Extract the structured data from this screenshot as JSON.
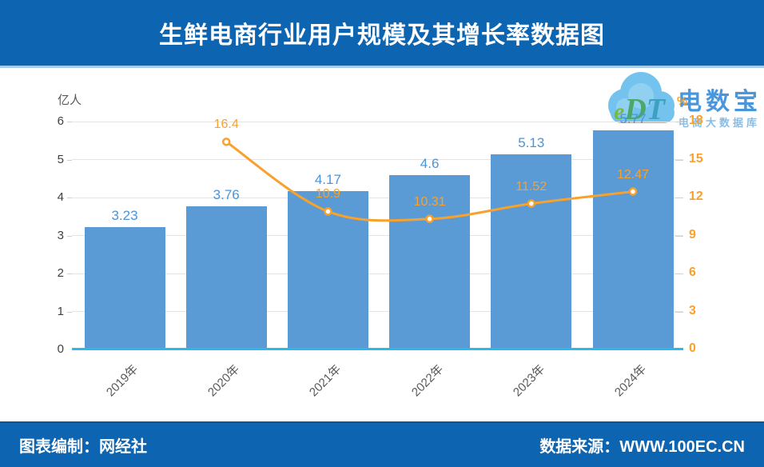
{
  "header": {
    "title": "生鲜电商行业用户规模及其增长率数据图"
  },
  "footer": {
    "left": "图表编制：网经社",
    "right": "数据来源：WWW.100EC.CN"
  },
  "logo": {
    "mark_e": "e",
    "mark_d": "D",
    "mark_t": "T",
    "name": "电数宝",
    "subtitle": "电商大数据库",
    "cloud_icon": "cloud-icon"
  },
  "chart_data": {
    "type": "bar",
    "title": "生鲜电商行业用户规模及其增长率数据图",
    "categories": [
      "2019年",
      "2020年",
      "2021年",
      "2022年",
      "2023年",
      "2024年"
    ],
    "series": [
      {
        "name": "用户规模",
        "type": "bar",
        "axis": "left",
        "values": [
          3.23,
          3.76,
          4.17,
          4.6,
          5.13,
          5.77
        ]
      },
      {
        "name": "增长率",
        "type": "line",
        "axis": "right",
        "values": [
          null,
          16.4,
          10.9,
          10.31,
          11.52,
          12.47
        ]
      }
    ],
    "left_axis": {
      "title": "亿人",
      "min": 0,
      "max": 6,
      "ticks": [
        0,
        1,
        2,
        3,
        4,
        5,
        6
      ]
    },
    "right_axis": {
      "title": "%",
      "min": 0,
      "max": 18,
      "ticks": [
        0,
        3,
        6,
        9,
        12,
        15,
        18
      ]
    },
    "grid": true,
    "legend": false
  },
  "colors": {
    "theme_blue": "#0d64b1",
    "bar": "#5b9bd5",
    "bar_label": "#4a94d8",
    "line": "#f8a12d",
    "axis_baseline_cyan": "#2fb7ea",
    "grid": "#e4e4e4",
    "left_tick_text": "#404040",
    "x_label_text": "#595959",
    "logo_cloud": "#74c3ee",
    "logo_text": "#4a96dd"
  }
}
